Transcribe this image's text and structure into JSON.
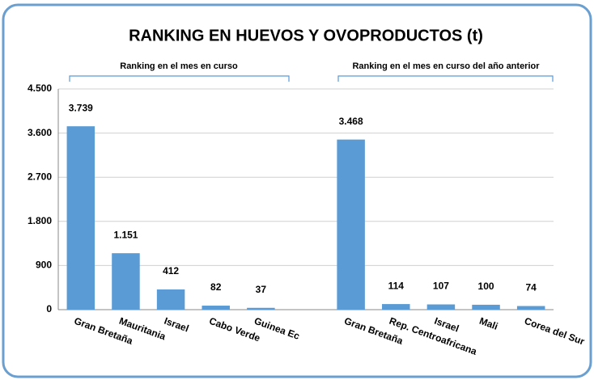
{
  "chart_data": {
    "type": "bar",
    "title": "RANKING EN HUEVOS Y OVOPRODUCTOS (t)",
    "annotations": [
      "Ranking en el mes en curso",
      "Ranking en el mes en curso del año anterior"
    ],
    "categories": [
      "Gran Bretaña",
      "Mauritania",
      "Israel",
      "Cabo Verde",
      "Guinea Ec",
      null,
      "Gran Bretaña",
      "Rep. Centroafricana",
      "Israel",
      "Mali",
      "Corea del Sur"
    ],
    "values": [
      3739,
      1151,
      412,
      82,
      37,
      null,
      3468,
      114,
      107,
      100,
      74
    ],
    "value_labels": [
      "3.739",
      "1.151",
      "412",
      "82",
      "37",
      null,
      "3.468",
      "114",
      "107",
      "100",
      "74"
    ],
    "color": "#5b9bd5",
    "ylim": [
      0,
      4500
    ],
    "yticks": [
      0,
      900,
      {
        "value": 1800,
        "label": "1.800"
      },
      {
        "value": 2700,
        "label": "2.700"
      },
      {
        "value": 3600,
        "label": "3.600"
      },
      {
        "value": 4500,
        "label": "4.500"
      }
    ],
    "grid": true
  }
}
